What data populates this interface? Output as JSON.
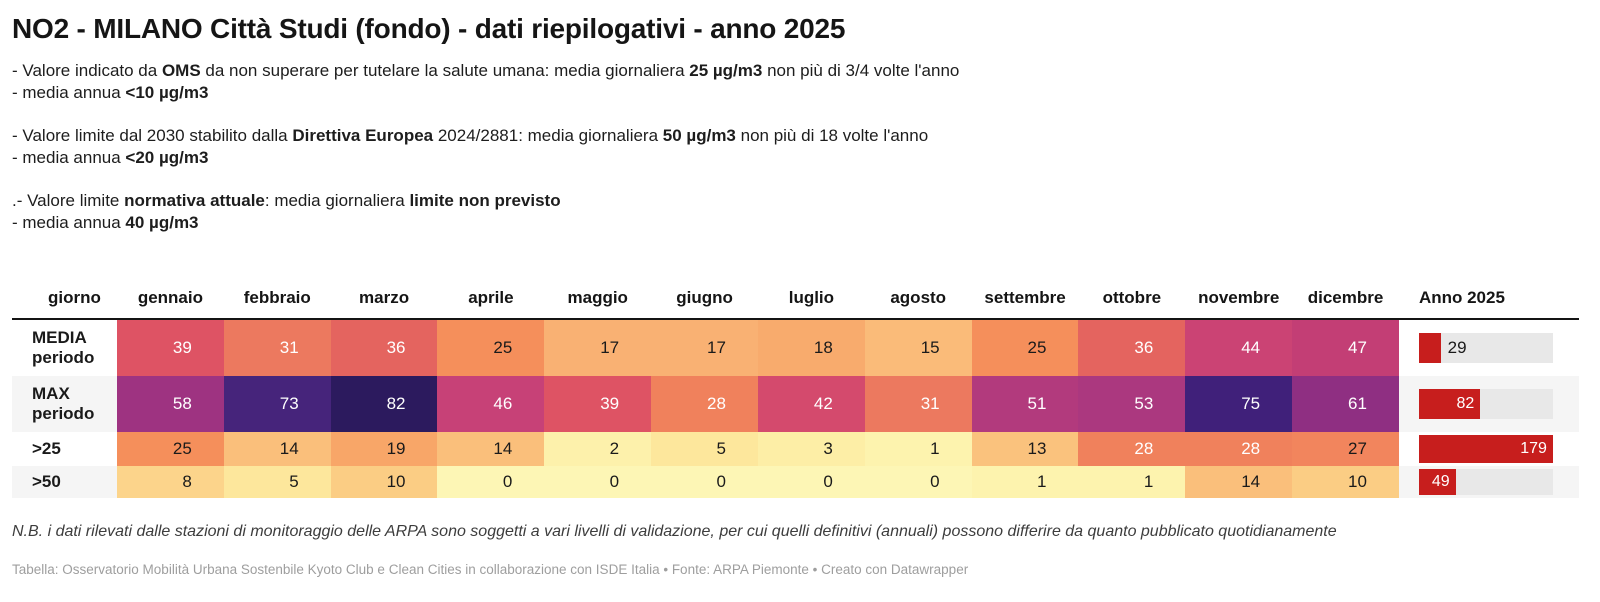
{
  "title": "NO2 - MILANO Città Studi (fondo) - dati riepilogativi - anno 2025",
  "intro_blocks": [
    {
      "lines": [
        [
          {
            "t": "- Valore indicato da "
          },
          {
            "t": "OMS",
            "b": 1
          },
          {
            "t": " da non superare per tutelare la salute umana: media giornaliera "
          },
          {
            "t": "25 µg/m3",
            "b": 1
          },
          {
            "t": " non più di 3/4 volte l'anno"
          }
        ],
        [
          {
            "t": "- media annua "
          },
          {
            "t": "<10 µg/m3",
            "b": 1
          }
        ]
      ]
    },
    {
      "lines": [
        [
          {
            "t": "- Valore limite dal 2030 stabilito dalla "
          },
          {
            "t": "Direttiva Europea",
            "b": 1
          },
          {
            "t": " 2024/2881: media giornaliera "
          },
          {
            "t": "50 µg/m3",
            "b": 1
          },
          {
            "t": " non più di 18 volte l'anno"
          }
        ],
        [
          {
            "t": "- media annua "
          },
          {
            "t": "<20 µg/m3",
            "b": 1
          }
        ]
      ]
    },
    {
      "lines": [
        [
          {
            "t": ".- Valore limite "
          },
          {
            "t": "normativa attuale",
            "b": 1
          },
          {
            "t": ": media giornaliera "
          },
          {
            "t": "limite non previsto",
            "b": 1
          }
        ],
        [
          {
            "t": "- media annua "
          },
          {
            "t": "40 µg/m3",
            "b": 1
          }
        ]
      ]
    }
  ],
  "table": {
    "columns": [
      "giorno",
      "gennaio",
      "febbraio",
      "marzo",
      "aprile",
      "maggio",
      "giugno",
      "luglio",
      "agosto",
      "settembre",
      "ottobre",
      "novembre",
      "dicembre",
      "Anno 2025"
    ],
    "bar_color": "#c71e1d",
    "track_color": "#e8e8e8",
    "bar_max": 179,
    "rows": [
      {
        "label_lines": [
          "MEDIA",
          "periodo"
        ],
        "cells": [
          {
            "v": "39",
            "bg": "#de5364",
            "fg": "#ffffff"
          },
          {
            "v": "31",
            "bg": "#ec795f",
            "fg": "#ffffff"
          },
          {
            "v": "36",
            "bg": "#e4645f",
            "fg": "#ffffff"
          },
          {
            "v": "25",
            "bg": "#f58f5b",
            "fg": "#1a1a1a"
          },
          {
            "v": "17",
            "bg": "#f9b173",
            "fg": "#1a1a1a"
          },
          {
            "v": "17",
            "bg": "#f9b173",
            "fg": "#1a1a1a"
          },
          {
            "v": "18",
            "bg": "#f8ab6d",
            "fg": "#1a1a1a"
          },
          {
            "v": "15",
            "bg": "#fabb79",
            "fg": "#1a1a1a"
          },
          {
            "v": "25",
            "bg": "#f58f5b",
            "fg": "#1a1a1a"
          },
          {
            "v": "36",
            "bg": "#e4645f",
            "fg": "#ffffff"
          },
          {
            "v": "44",
            "bg": "#cb4374",
            "fg": "#ffffff"
          },
          {
            "v": "47",
            "bg": "#c33e75",
            "fg": "#ffffff"
          }
        ],
        "bar": {
          "value": "29",
          "pct": 16.2,
          "inside": false
        }
      },
      {
        "label_lines": [
          "MAX",
          "periodo"
        ],
        "cells": [
          {
            "v": "58",
            "bg": "#9e3381",
            "fg": "#ffffff"
          },
          {
            "v": "73",
            "bg": "#46247b",
            "fg": "#ffffff"
          },
          {
            "v": "82",
            "bg": "#2c1a5e",
            "fg": "#ffffff"
          },
          {
            "v": "46",
            "bg": "#c74177",
            "fg": "#ffffff"
          },
          {
            "v": "39",
            "bg": "#de5364",
            "fg": "#ffffff"
          },
          {
            "v": "28",
            "bg": "#f0815c",
            "fg": "#ffffff"
          },
          {
            "v": "42",
            "bg": "#d44a6d",
            "fg": "#ffffff"
          },
          {
            "v": "31",
            "bg": "#ec795f",
            "fg": "#ffffff"
          },
          {
            "v": "51",
            "bg": "#b23a7d",
            "fg": "#ffffff"
          },
          {
            "v": "53",
            "bg": "#ab387f",
            "fg": "#ffffff"
          },
          {
            "v": "75",
            "bg": "#40207a",
            "fg": "#ffffff"
          },
          {
            "v": "61",
            "bg": "#8f2f82",
            "fg": "#ffffff"
          }
        ],
        "bar": {
          "value": "82",
          "pct": 45.8,
          "inside": true
        }
      },
      {
        "label_lines": [
          ">25"
        ],
        "cells": [
          {
            "v": "25",
            "bg": "#f58f5b",
            "fg": "#1a1a1a"
          },
          {
            "v": "14",
            "bg": "#fabf7b",
            "fg": "#1a1a1a"
          },
          {
            "v": "19",
            "bg": "#f8a668",
            "fg": "#1a1a1a"
          },
          {
            "v": "14",
            "bg": "#fabf7b",
            "fg": "#1a1a1a"
          },
          {
            "v": "2",
            "bg": "#fdf1ab",
            "fg": "#1a1a1a"
          },
          {
            "v": "5",
            "bg": "#fde79c",
            "fg": "#1a1a1a"
          },
          {
            "v": "3",
            "bg": "#fdeea6",
            "fg": "#1a1a1a"
          },
          {
            "v": "1",
            "bg": "#fdf3ae",
            "fg": "#1a1a1a"
          },
          {
            "v": "13",
            "bg": "#fac27d",
            "fg": "#1a1a1a"
          },
          {
            "v": "28",
            "bg": "#f0815c",
            "fg": "#ffffff"
          },
          {
            "v": "28",
            "bg": "#f0815c",
            "fg": "#ffffff"
          },
          {
            "v": "27",
            "bg": "#f2855d",
            "fg": "#1a1a1a"
          }
        ],
        "bar": {
          "value": "179",
          "pct": 100,
          "inside": true
        }
      },
      {
        "label_lines": [
          ">50"
        ],
        "cells": [
          {
            "v": "8",
            "bg": "#fcd48b",
            "fg": "#1a1a1a"
          },
          {
            "v": "5",
            "bg": "#fde79c",
            "fg": "#1a1a1a"
          },
          {
            "v": "10",
            "bg": "#fbcd84",
            "fg": "#1a1a1a"
          },
          {
            "v": "0",
            "bg": "#fdf6b5",
            "fg": "#1a1a1a"
          },
          {
            "v": "0",
            "bg": "#fdf6b5",
            "fg": "#1a1a1a"
          },
          {
            "v": "0",
            "bg": "#fdf6b5",
            "fg": "#1a1a1a"
          },
          {
            "v": "0",
            "bg": "#fdf6b5",
            "fg": "#1a1a1a"
          },
          {
            "v": "0",
            "bg": "#fdf6b5",
            "fg": "#1a1a1a"
          },
          {
            "v": "1",
            "bg": "#fdf3ae",
            "fg": "#1a1a1a"
          },
          {
            "v": "1",
            "bg": "#fdf3ae",
            "fg": "#1a1a1a"
          },
          {
            "v": "14",
            "bg": "#fabf7b",
            "fg": "#1a1a1a"
          },
          {
            "v": "10",
            "bg": "#fbcd84",
            "fg": "#1a1a1a"
          }
        ],
        "bar": {
          "value": "49",
          "pct": 27.4,
          "inside": true
        }
      }
    ]
  },
  "note": "N.B. i dati rilevati dalle stazioni di monitoraggio delle ARPA sono soggetti a vari livelli di validazione, per cui quelli definitivi (annuali) possono differire da quanto pubblicato quotidianamente",
  "credits": "Tabella: Osservatorio Mobilità Urbana Sostenbile Kyoto Club e Clean Cities in collaborazione con ISDE Italia • Fonte: ARPA Piemonte • Creato con Datawrapper",
  "chart_data": {
    "type": "table",
    "title": "NO2 - MILANO Città Studi (fondo) - dati riepilogativi - anno 2025",
    "categories": [
      "gennaio",
      "febbraio",
      "marzo",
      "aprile",
      "maggio",
      "giugno",
      "luglio",
      "agosto",
      "settembre",
      "ottobre",
      "novembre",
      "dicembre"
    ],
    "series": [
      {
        "name": "MEDIA periodo",
        "values": [
          39,
          31,
          36,
          25,
          17,
          17,
          18,
          15,
          25,
          36,
          44,
          47
        ],
        "anno_2025": 29
      },
      {
        "name": "MAX periodo",
        "values": [
          58,
          73,
          82,
          46,
          39,
          28,
          42,
          31,
          51,
          53,
          75,
          61
        ],
        "anno_2025": 82
      },
      {
        "name": ">25",
        "values": [
          25,
          14,
          19,
          14,
          2,
          5,
          3,
          1,
          13,
          28,
          28,
          27
        ],
        "anno_2025": 179
      },
      {
        "name": ">50",
        "values": [
          8,
          5,
          10,
          0,
          0,
          0,
          0,
          0,
          1,
          1,
          14,
          10
        ],
        "anno_2025": 49
      }
    ],
    "anno_bar_max": 179,
    "heatmap": true,
    "bar_column_label": "Anno 2025"
  }
}
